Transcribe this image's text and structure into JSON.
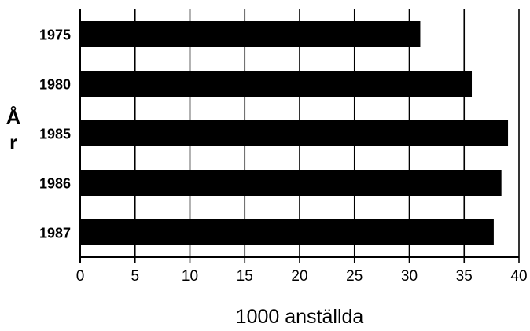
{
  "chart_data": {
    "type": "bar",
    "orientation": "horizontal",
    "categories": [
      "1975",
      "1980",
      "1985",
      "1986",
      "1987"
    ],
    "values": [
      31,
      35.7,
      39,
      38.4,
      37.7
    ],
    "xlabel": "1000 anställda",
    "ylabel_lines": [
      "Å",
      "r"
    ],
    "xlim": [
      0,
      40
    ],
    "xticks": [
      0,
      5,
      10,
      15,
      20,
      25,
      30,
      35,
      40
    ],
    "grid": "vertical",
    "bar_color": "#000000"
  }
}
